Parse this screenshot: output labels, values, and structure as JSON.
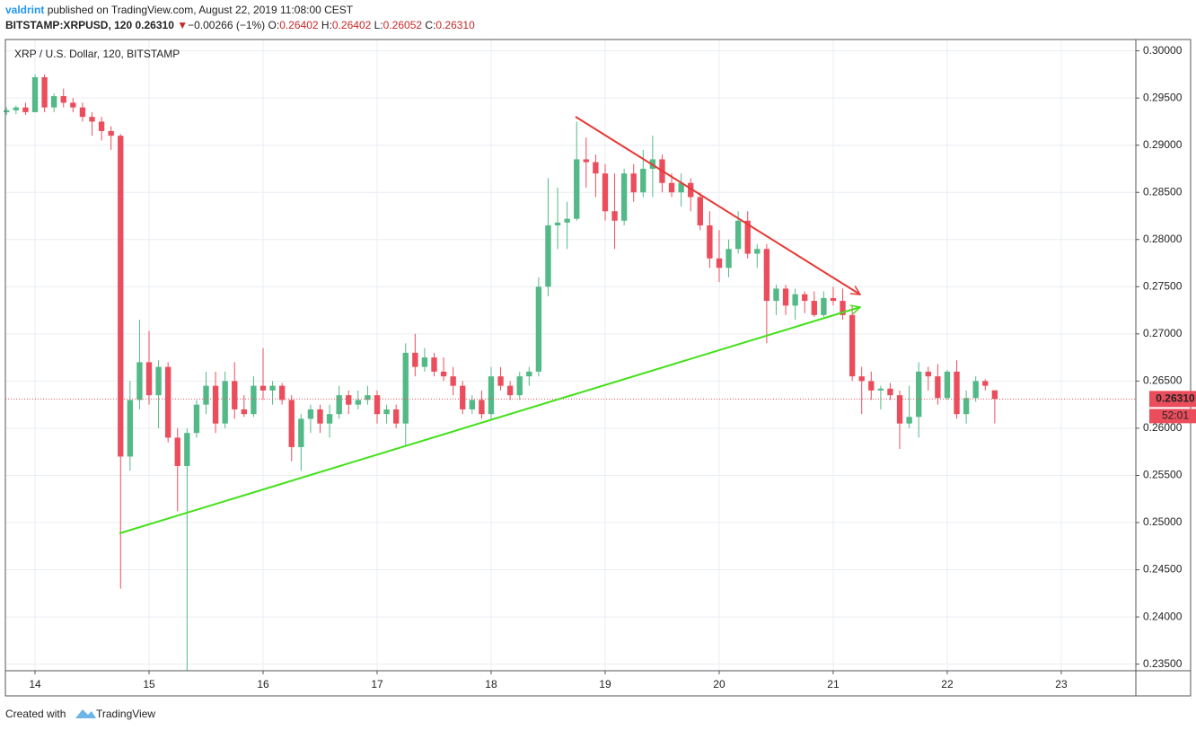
{
  "header": {
    "author": "valdrint",
    "published": "published on TradingView.com, August 22, 2019 11:08:00 CEST",
    "symbol": "BITSTAMP:XRPUSD, 120",
    "arrow": "▼",
    "change": "−0.00266 (−1%)",
    "o_label": "O:",
    "open": "0.26402",
    "h_label": "H:",
    "high": "0.26402",
    "l_label": "L:",
    "low": "0.26052",
    "c_label": "C:",
    "close": "0.26310"
  },
  "footer": {
    "created": "Created with",
    "brand": "TradingView"
  },
  "chart_data": {
    "type": "candlestick",
    "title": "XRP / U.S. Dollar, 120, BITSTAMP",
    "up_color": "#53b987",
    "down_color": "#eb4d5c",
    "grid": true,
    "xlim": [
      13.74,
      23.654
    ],
    "ylim": [
      0.2343,
      0.3012
    ],
    "xticks": [
      14,
      15,
      16,
      17,
      18,
      19,
      20,
      21,
      22,
      23
    ],
    "yticks": [
      {
        "value": 0.235,
        "label": "0.23500"
      },
      {
        "value": 0.24,
        "label": "0.24000"
      },
      {
        "value": 0.245,
        "label": "0.24500"
      },
      {
        "value": 0.25,
        "label": "0.25000"
      },
      {
        "value": 0.255,
        "label": "0.25500"
      },
      {
        "value": 0.26,
        "label": "0.26000"
      },
      {
        "value": 0.265,
        "label": "0.26500"
      },
      {
        "value": 0.27,
        "label": "0.27000"
      },
      {
        "value": 0.275,
        "label": "0.27500"
      },
      {
        "value": 0.28,
        "label": "0.28000"
      },
      {
        "value": 0.285,
        "label": "0.28500"
      },
      {
        "value": 0.29,
        "label": "0.29000"
      },
      {
        "value": 0.295,
        "label": "0.29500"
      },
      {
        "value": 0.3,
        "label": "0.30000"
      }
    ],
    "last_price": {
      "value": 0.2631,
      "label": "0.26310"
    },
    "countdown": "52:01",
    "x": [
      13.75,
      13.8333,
      13.9167,
      14,
      14.0833,
      14.1667,
      14.25,
      14.3333,
      14.4167,
      14.5,
      14.5833,
      14.6667,
      14.75,
      14.8333,
      14.9167,
      15,
      15.0833,
      15.1667,
      15.25,
      15.3333,
      15.4167,
      15.5,
      15.5833,
      15.6667,
      15.75,
      15.8333,
      15.9167,
      16,
      16.0833,
      16.1667,
      16.25,
      16.3333,
      16.4167,
      16.5,
      16.5833,
      16.6667,
      16.75,
      16.8333,
      16.9167,
      17,
      17.0833,
      17.1667,
      17.25,
      17.3333,
      17.4167,
      17.5,
      17.5833,
      17.6667,
      17.75,
      17.8333,
      17.9167,
      18,
      18.0833,
      18.1667,
      18.25,
      18.3333,
      18.4167,
      18.5,
      18.5833,
      18.6667,
      18.75,
      18.8333,
      18.9167,
      19,
      19.0833,
      19.1667,
      19.25,
      19.3333,
      19.4167,
      19.5,
      19.5833,
      19.6667,
      19.75,
      19.8333,
      19.9167,
      20,
      20.0833,
      20.1667,
      20.25,
      20.3333,
      20.4167,
      20.5,
      20.5833,
      20.6667,
      20.75,
      20.8333,
      20.9167,
      21,
      21.0833,
      21.1667,
      21.25,
      21.3333,
      21.4167,
      21.5,
      21.5833,
      21.6667,
      21.75,
      21.8333,
      21.9167,
      22,
      22.0833,
      22.1667,
      22.25,
      22.3333,
      22.4167
    ],
    "open": [
      0.2935,
      0.2937,
      0.294,
      0.2935,
      0.2972,
      0.294,
      0.2952,
      0.2945,
      0.294,
      0.293,
      0.2925,
      0.2915,
      0.291,
      0.257,
      0.263,
      0.267,
      0.2635,
      0.2665,
      0.259,
      0.256,
      0.2595,
      0.2625,
      0.2645,
      0.2605,
      0.265,
      0.262,
      0.2615,
      0.2645,
      0.264,
      0.2645,
      0.263,
      0.258,
      0.261,
      0.262,
      0.2605,
      0.2615,
      0.2635,
      0.2625,
      0.263,
      0.2635,
      0.2615,
      0.262,
      0.2605,
      0.268,
      0.2665,
      0.2675,
      0.266,
      0.2655,
      0.2645,
      0.262,
      0.263,
      0.2615,
      0.2655,
      0.2645,
      0.2635,
      0.2655,
      0.266,
      0.275,
      0.2815,
      0.2818,
      0.2822,
      0.2885,
      0.2882,
      0.287,
      0.283,
      0.282,
      0.287,
      0.285,
      0.2875,
      0.2885,
      0.286,
      0.285,
      0.286,
      0.2845,
      0.2815,
      0.278,
      0.277,
      0.279,
      0.282,
      0.2785,
      0.279,
      0.2735,
      0.2748,
      0.273,
      0.2742,
      0.2735,
      0.272,
      0.2738,
      0.2735,
      0.272,
      0.2655,
      0.265,
      0.264,
      0.2642,
      0.2635,
      0.2605,
      0.2612,
      0.266,
      0.2655,
      0.2632,
      0.266,
      0.2615,
      0.2632,
      0.265,
      0.26402
    ],
    "high": [
      0.294,
      0.2942,
      0.2945,
      0.2975,
      0.2975,
      0.2955,
      0.296,
      0.295,
      0.2945,
      0.2935,
      0.293,
      0.292,
      0.2912,
      0.265,
      0.2715,
      0.2703,
      0.2672,
      0.267,
      0.26,
      0.26,
      0.263,
      0.266,
      0.266,
      0.266,
      0.267,
      0.2635,
      0.2655,
      0.2685,
      0.265,
      0.2648,
      0.2635,
      0.2615,
      0.2625,
      0.2625,
      0.2625,
      0.2645,
      0.264,
      0.264,
      0.2645,
      0.264,
      0.2625,
      0.2625,
      0.269,
      0.27,
      0.2685,
      0.268,
      0.2675,
      0.2665,
      0.265,
      0.2635,
      0.264,
      0.2665,
      0.2665,
      0.265,
      0.266,
      0.2665,
      0.276,
      0.2865,
      0.2855,
      0.284,
      0.2925,
      0.2908,
      0.289,
      0.288,
      0.287,
      0.2875,
      0.288,
      0.2895,
      0.291,
      0.289,
      0.287,
      0.287,
      0.2865,
      0.285,
      0.283,
      0.281,
      0.28,
      0.283,
      0.283,
      0.2795,
      0.2795,
      0.2752,
      0.2752,
      0.2748,
      0.2745,
      0.2745,
      0.2745,
      0.275,
      0.2748,
      0.273,
      0.2665,
      0.266,
      0.2645,
      0.2648,
      0.264,
      0.2645,
      0.267,
      0.2665,
      0.2668,
      0.2662,
      0.2672,
      0.264,
      0.2655,
      0.2652,
      0.26402
    ],
    "low": [
      0.2932,
      0.2933,
      0.2932,
      0.2935,
      0.2935,
      0.2935,
      0.294,
      0.2935,
      0.2925,
      0.291,
      0.2905,
      0.2895,
      0.243,
      0.2555,
      0.262,
      0.2625,
      0.26,
      0.2585,
      0.2512,
      0.2343,
      0.259,
      0.2615,
      0.2595,
      0.26,
      0.261,
      0.2612,
      0.2612,
      0.263,
      0.2625,
      0.2625,
      0.2565,
      0.2555,
      0.2595,
      0.2595,
      0.259,
      0.261,
      0.2615,
      0.262,
      0.2625,
      0.2605,
      0.2605,
      0.26,
      0.2582,
      0.2655,
      0.266,
      0.2655,
      0.265,
      0.2635,
      0.2615,
      0.2615,
      0.261,
      0.261,
      0.264,
      0.263,
      0.263,
      0.2645,
      0.2655,
      0.274,
      0.279,
      0.279,
      0.282,
      0.2855,
      0.2845,
      0.282,
      0.279,
      0.2815,
      0.284,
      0.2845,
      0.2845,
      0.285,
      0.2845,
      0.2835,
      0.283,
      0.281,
      0.277,
      0.2755,
      0.276,
      0.2785,
      0.278,
      0.277,
      0.269,
      0.272,
      0.272,
      0.2715,
      0.2722,
      0.2718,
      0.2718,
      0.273,
      0.2715,
      0.265,
      0.2615,
      0.263,
      0.262,
      0.263,
      0.2578,
      0.26,
      0.259,
      0.264,
      0.2625,
      0.263,
      0.261,
      0.2605,
      0.2628,
      0.264,
      0.26052
    ],
    "close": [
      0.2937,
      0.294,
      0.2935,
      0.2972,
      0.294,
      0.2952,
      0.2945,
      0.294,
      0.293,
      0.2925,
      0.2915,
      0.291,
      0.257,
      0.263,
      0.267,
      0.2635,
      0.2665,
      0.259,
      0.256,
      0.2595,
      0.2625,
      0.2645,
      0.2605,
      0.265,
      0.262,
      0.2615,
      0.2645,
      0.264,
      0.2645,
      0.263,
      0.258,
      0.261,
      0.262,
      0.2605,
      0.2615,
      0.2635,
      0.2625,
      0.263,
      0.2635,
      0.2615,
      0.262,
      0.2605,
      0.268,
      0.2665,
      0.2675,
      0.266,
      0.2655,
      0.2645,
      0.262,
      0.263,
      0.2615,
      0.2655,
      0.2645,
      0.2635,
      0.2655,
      0.266,
      0.275,
      0.2815,
      0.2818,
      0.2822,
      0.2885,
      0.2882,
      0.287,
      0.283,
      0.282,
      0.287,
      0.285,
      0.2875,
      0.2885,
      0.286,
      0.285,
      0.286,
      0.2845,
      0.2815,
      0.278,
      0.277,
      0.279,
      0.282,
      0.2785,
      0.279,
      0.2735,
      0.2748,
      0.273,
      0.2742,
      0.2735,
      0.272,
      0.2738,
      0.2735,
      0.272,
      0.2655,
      0.265,
      0.264,
      0.2642,
      0.2635,
      0.2605,
      0.2612,
      0.266,
      0.2655,
      0.2632,
      0.266,
      0.2615,
      0.2632,
      0.265,
      0.2645,
      0.2631
    ]
  }
}
